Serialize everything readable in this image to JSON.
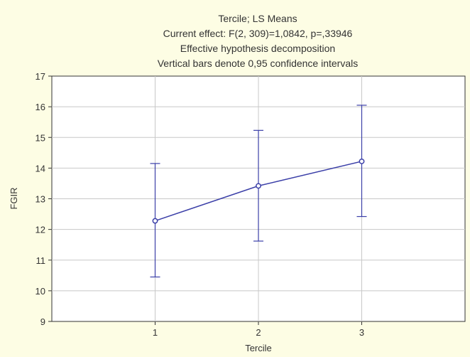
{
  "chart_data": {
    "type": "line",
    "title_lines": [
      "Tercile; LS Means",
      "Current effect: F(2, 309)=1,0842, p=,33946",
      "Effective hypothesis decomposition",
      "Vertical bars denote 0,95 confidence intervals"
    ],
    "xlabel": "Tercile",
    "ylabel": "FGIR",
    "categories": [
      "1",
      "2",
      "3"
    ],
    "xlim": [
      0,
      4
    ],
    "ylim": [
      9,
      17
    ],
    "yticks": [
      "9",
      "10",
      "11",
      "12",
      "13",
      "14",
      "15",
      "16",
      "17"
    ],
    "grid": true,
    "series": [
      {
        "values": [
          12.28,
          13.42,
          14.22
        ],
        "ci_lower": [
          10.45,
          11.62,
          12.42
        ],
        "ci_upper": [
          14.15,
          15.23,
          16.05
        ],
        "color": "#3b3fa8"
      }
    ],
    "colors": {
      "background": "#fdfde4",
      "plot_area": "#ffffff",
      "grid": "#c8c8c8",
      "series": "#3b3fa8"
    }
  }
}
